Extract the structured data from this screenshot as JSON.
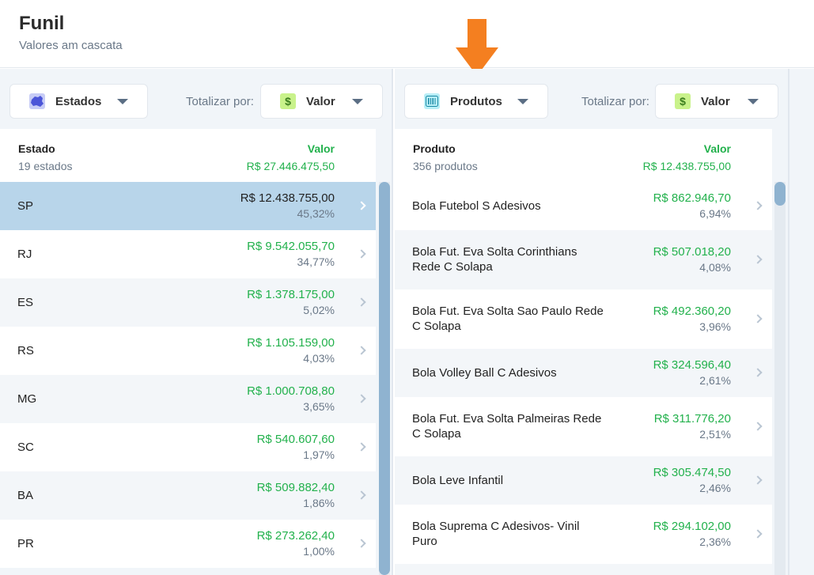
{
  "header": {
    "title": "Funil",
    "subtitle": "Valores am cascata"
  },
  "left": {
    "dimension_label": "Estados",
    "dimension_icon": "map-icon",
    "totalizar_label": "Totalizar por:",
    "metric_label": "Valor",
    "metric_icon": "dollar-icon",
    "list_title": "Estado",
    "list_count": "19 estados",
    "value_title": "Valor",
    "total": "R$ 27.446.475,50",
    "rows": [
      {
        "name": "SP",
        "value": "R$ 12.438.755,00",
        "pct": "45,32%",
        "selected": true
      },
      {
        "name": "RJ",
        "value": "R$ 9.542.055,70",
        "pct": "34,77%"
      },
      {
        "name": "ES",
        "value": "R$ 1.378.175,00",
        "pct": "5,02%"
      },
      {
        "name": "RS",
        "value": "R$ 1.105.159,00",
        "pct": "4,03%"
      },
      {
        "name": "MG",
        "value": "R$ 1.000.708,80",
        "pct": "3,65%"
      },
      {
        "name": "SC",
        "value": "R$ 540.607,60",
        "pct": "1,97%"
      },
      {
        "name": "BA",
        "value": "R$ 509.882,40",
        "pct": "1,86%"
      },
      {
        "name": "PR",
        "value": "R$ 273.262,40",
        "pct": "1,00%"
      }
    ]
  },
  "right": {
    "dimension_label": "Produtos",
    "dimension_icon": "barcode-icon",
    "totalizar_label": "Totalizar por:",
    "metric_label": "Valor",
    "metric_icon": "dollar-icon",
    "list_title": "Produto",
    "list_count": "356 produtos",
    "value_title": "Valor",
    "total": "R$ 12.438.755,00",
    "rows": [
      {
        "name": "Bola Futebol S  Adesivos",
        "value": "R$ 862.946,70",
        "pct": "6,94%"
      },
      {
        "name": "Bola Fut. Eva Solta Corinthians Rede C  Solapa",
        "value": "R$ 507.018,20",
        "pct": "4,08%"
      },
      {
        "name": "Bola Fut. Eva Solta Sao Paulo Rede C  Solapa",
        "value": "R$ 492.360,20",
        "pct": "3,96%"
      },
      {
        "name": "Bola Volley Ball C  Adesivos",
        "value": "R$ 324.596,40",
        "pct": "2,61%"
      },
      {
        "name": "Bola Fut. Eva Solta Palmeiras Rede C  Solapa",
        "value": "R$ 311.776,20",
        "pct": "2,51%"
      },
      {
        "name": "Bola Leve Infantil",
        "value": "R$ 305.474,50",
        "pct": "2,46%"
      },
      {
        "name": "Bola Suprema C  Adesivos- Vinil Puro",
        "value": "R$ 294.102,00",
        "pct": "2,36%"
      }
    ]
  },
  "colors": {
    "accent_green": "#22b14c",
    "selected_row": "#b8d5ea",
    "arrow": "#f47f20"
  }
}
